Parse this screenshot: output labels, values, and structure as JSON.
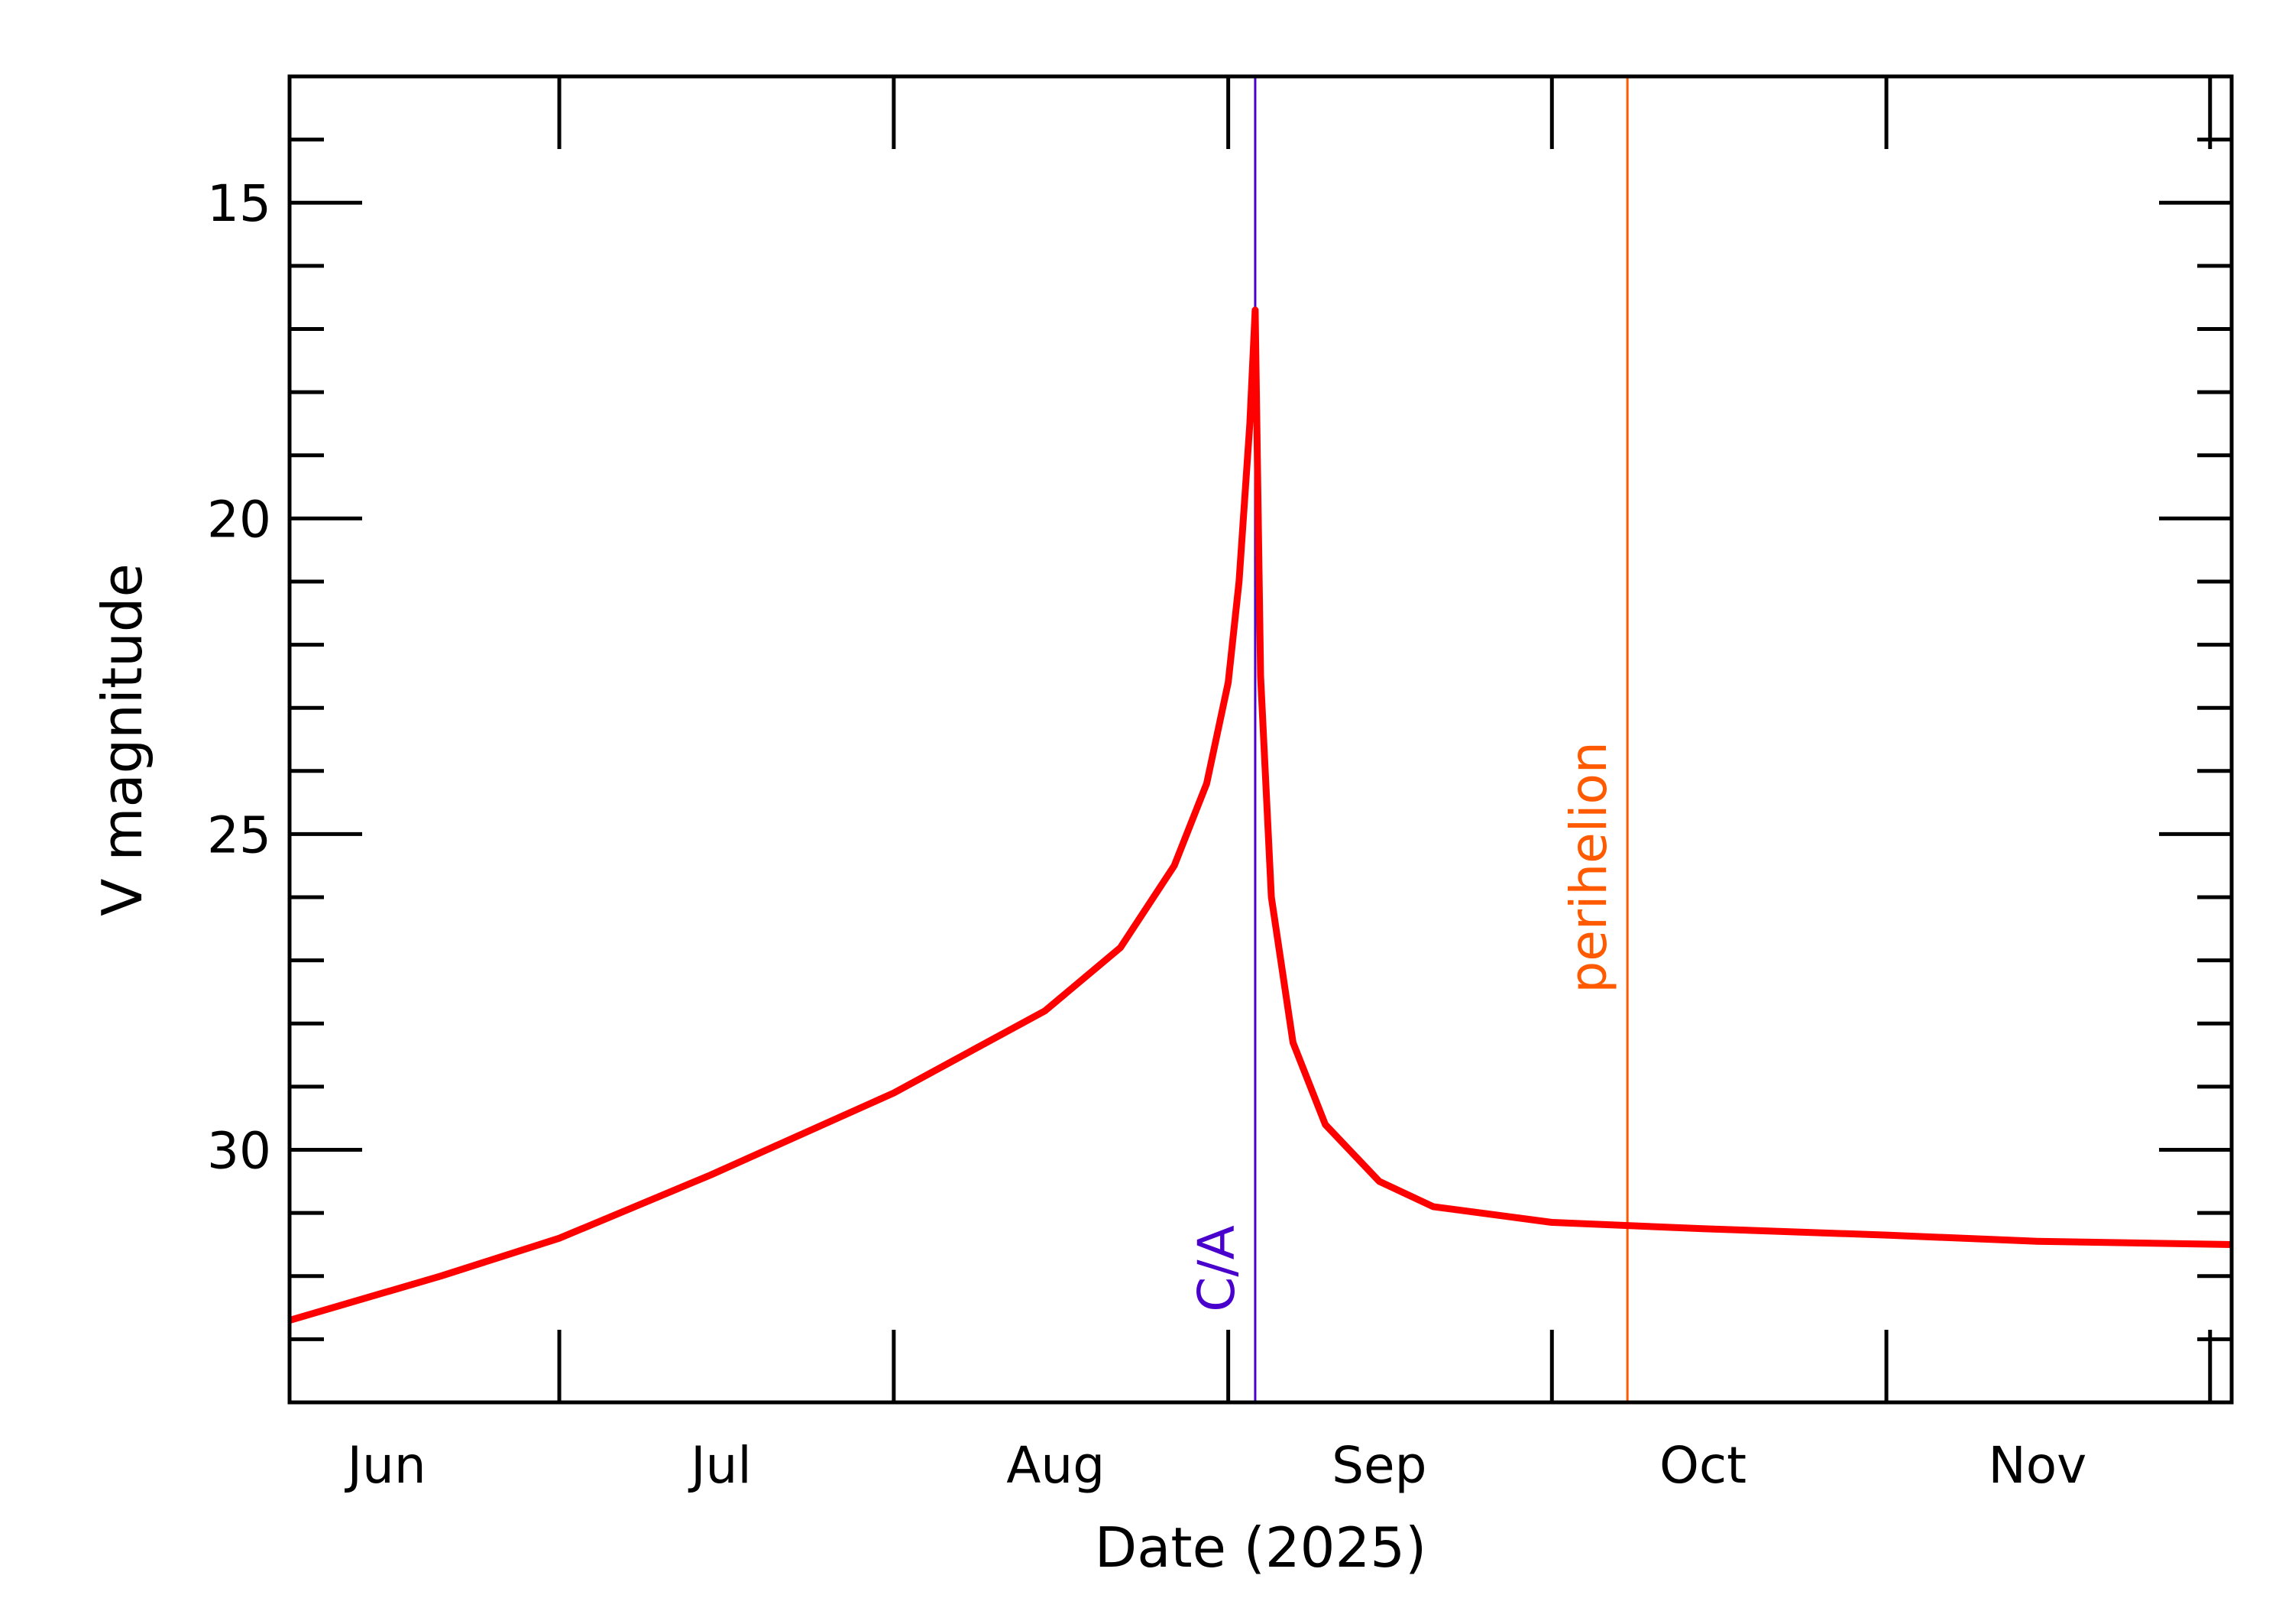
{
  "chart_data": {
    "type": "line",
    "title": "",
    "xlabel": "Date (2025)",
    "ylabel": "V magnitude",
    "xlim": [
      "2025-06-06",
      "2025-12-03"
    ],
    "ylim": [
      34.0,
      13.0
    ],
    "y_inverted": true,
    "grid": false,
    "x_tick_labels": [
      "Jun",
      "Jul",
      "Aug",
      "Sep",
      "Oct",
      "Nov"
    ],
    "y_tick_labels": [
      "15",
      "20",
      "25",
      "30"
    ],
    "y_major_ticks": [
      15,
      20,
      25,
      30
    ],
    "series": [
      {
        "color": "#ff0000",
        "x": [
          "2025-06-06",
          "2025-06-20",
          "2025-07-01",
          "2025-07-15",
          "2025-08-01",
          "2025-08-15",
          "2025-08-22",
          "2025-08-27",
          "2025-08-30",
          "2025-09-01",
          "2025-09-02",
          "2025-09-03",
          "2025-09-03.5",
          "2025-09-04",
          "2025-09-05",
          "2025-09-07",
          "2025-09-10",
          "2025-09-15",
          "2025-09-20",
          "2025-10-01",
          "2025-10-15",
          "2025-11-01",
          "2025-11-15",
          "2025-12-03"
        ],
        "y": [
          32.7,
          32.0,
          31.4,
          30.4,
          29.1,
          27.8,
          26.8,
          25.5,
          24.2,
          22.6,
          21.0,
          18.5,
          16.7,
          22.5,
          26.0,
          28.3,
          29.6,
          30.5,
          30.9,
          31.15,
          31.25,
          31.35,
          31.45,
          31.5
        ]
      }
    ],
    "annotations": [
      {
        "label": "C/A",
        "date": "2025-09-03.5",
        "color": "#4a00cc"
      },
      {
        "label": "perihelion",
        "date": "2025-10-08",
        "color": "#ff5a00"
      }
    ]
  }
}
